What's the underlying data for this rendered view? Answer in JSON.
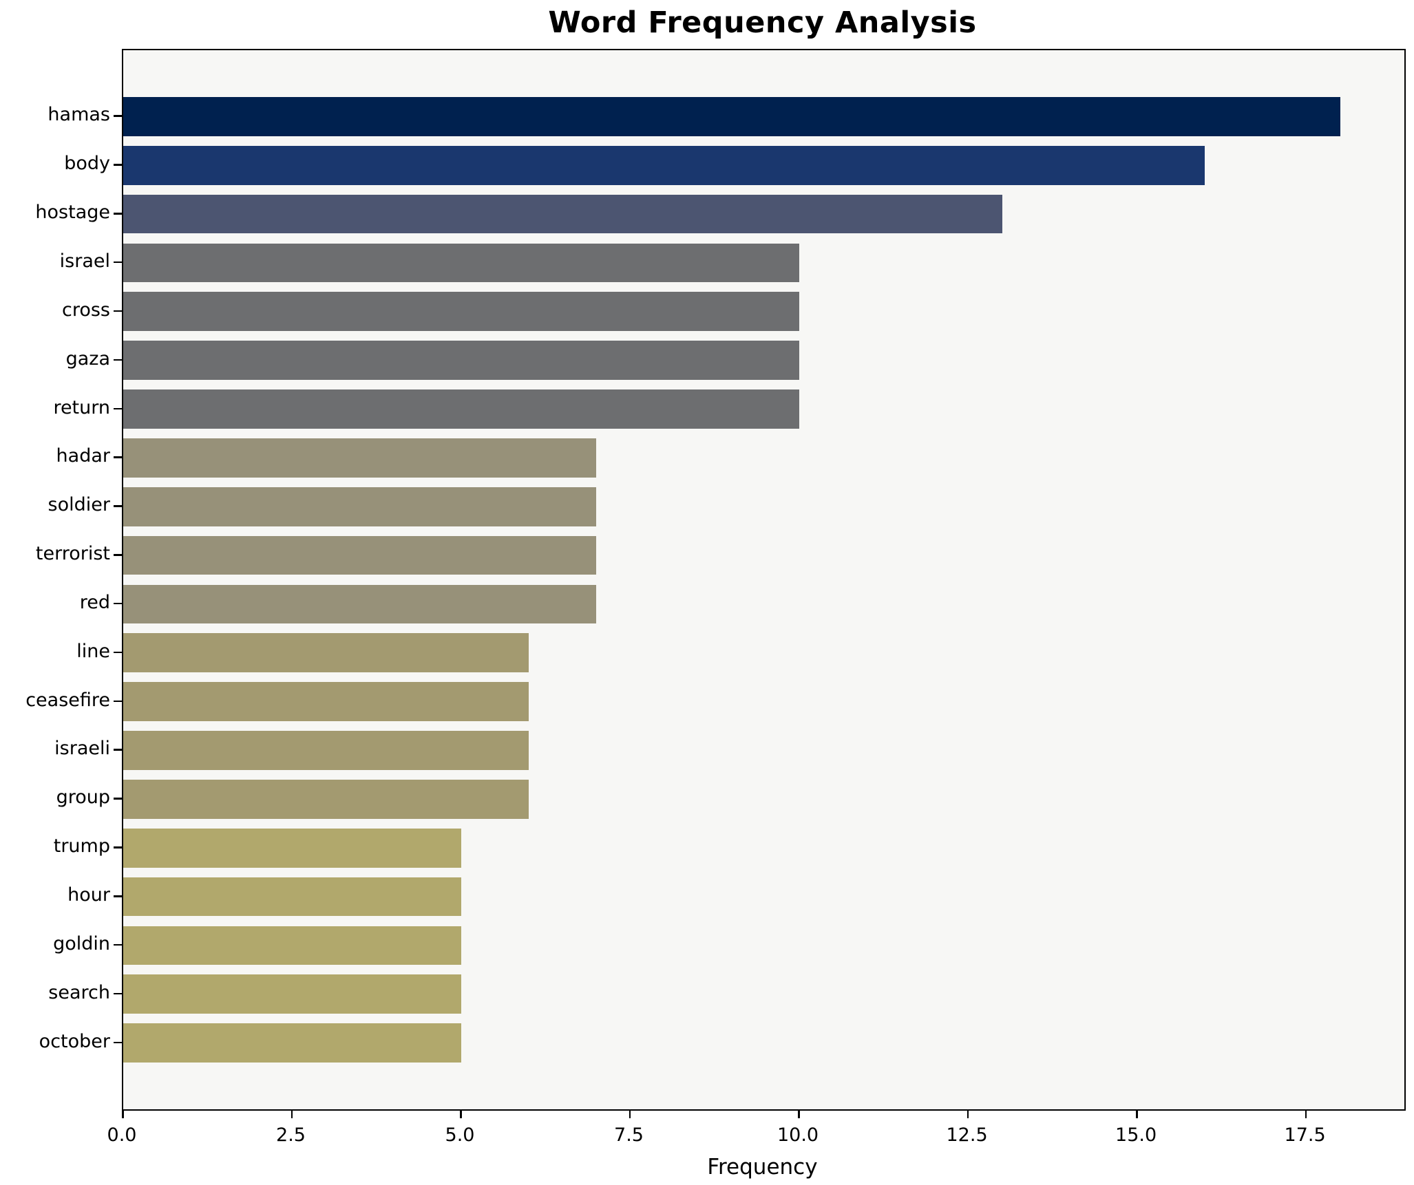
{
  "chart_data": {
    "type": "bar",
    "orientation": "horizontal",
    "title": "Word Frequency Analysis",
    "xlabel": "Frequency",
    "ylabel": "",
    "categories": [
      "hamas",
      "body",
      "hostage",
      "israel",
      "cross",
      "gaza",
      "return",
      "hadar",
      "soldier",
      "terrorist",
      "red",
      "line",
      "ceasefire",
      "israeli",
      "group",
      "trump",
      "hour",
      "goldin",
      "search",
      "october"
    ],
    "values": [
      18,
      16,
      13,
      10,
      10,
      10,
      10,
      7,
      7,
      7,
      7,
      6,
      6,
      6,
      6,
      5,
      5,
      5,
      5,
      5
    ],
    "bar_colors": [
      "#00214f",
      "#1a376e",
      "#4c5571",
      "#6d6e70",
      "#6d6e70",
      "#6d6e70",
      "#6d6e70",
      "#979179",
      "#979179",
      "#979179",
      "#979179",
      "#a39a70",
      "#a39a70",
      "#a39a70",
      "#a39a70",
      "#b1a86c",
      "#b1a86c",
      "#b1a86c",
      "#b1a86c",
      "#b1a86c"
    ],
    "xlim": [
      0,
      18.95
    ],
    "x_tick_values": [
      0,
      2.5,
      5,
      7.5,
      10,
      12.5,
      15,
      17.5
    ],
    "x_tick_labels": [
      "0.0",
      "2.5",
      "5.0",
      "7.5",
      "10.0",
      "12.5",
      "15.0",
      "17.5"
    ],
    "grid": false,
    "legend": null,
    "plot_bg": "#f7f7f5",
    "fig_bg": "#ffffff",
    "spine_color": "#000000",
    "bar_height_fraction": 0.8
  }
}
